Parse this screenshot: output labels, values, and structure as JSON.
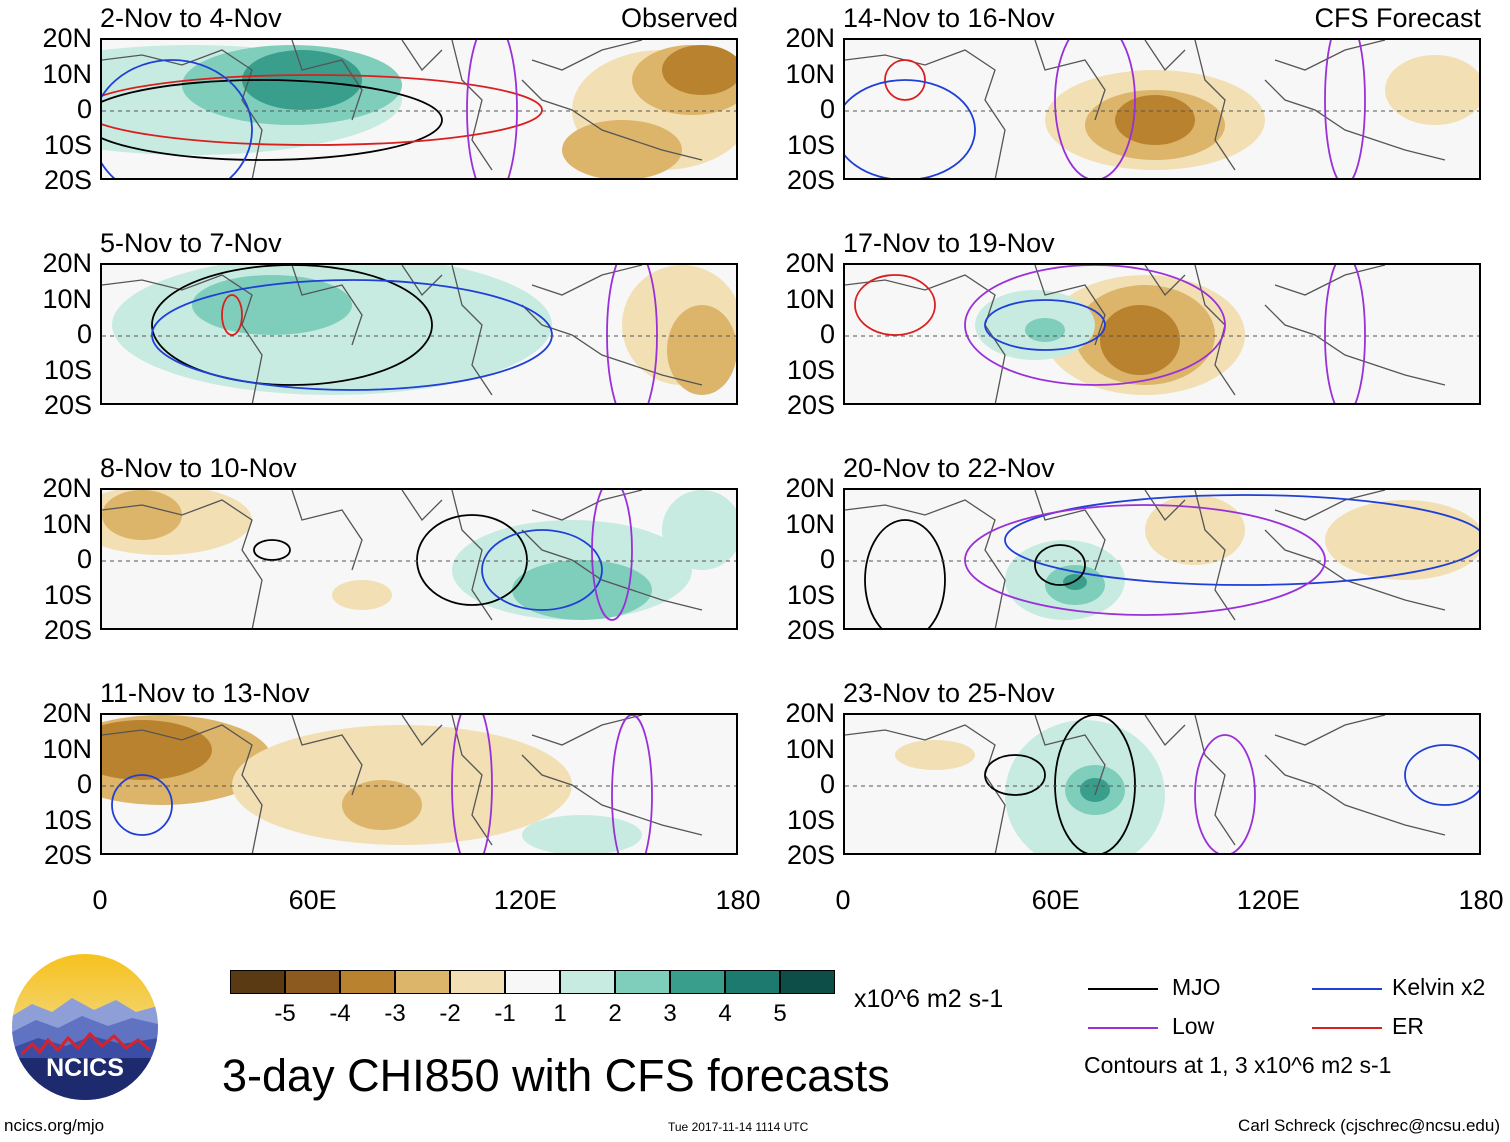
{
  "panels": [
    {
      "title": "2-Nov to 4-Nov",
      "label": "Observed"
    },
    {
      "title": "5-Nov to 7-Nov",
      "label": ""
    },
    {
      "title": "8-Nov to 10-Nov",
      "label": ""
    },
    {
      "title": "11-Nov to 13-Nov",
      "label": ""
    },
    {
      "title": "14-Nov to 16-Nov",
      "label": "CFS Forecast"
    },
    {
      "title": "17-Nov to 19-Nov",
      "label": ""
    },
    {
      "title": "20-Nov to 22-Nov",
      "label": ""
    },
    {
      "title": "23-Nov to 25-Nov",
      "label": ""
    }
  ],
  "axes": {
    "y_ticks": [
      "20N",
      "10N",
      "0",
      "10S",
      "20S"
    ],
    "x_ticks": [
      "0",
      "60E",
      "120E",
      "180"
    ]
  },
  "colorbar": {
    "ticks": [
      "-5",
      "-4",
      "-3",
      "-2",
      "-1",
      "1",
      "2",
      "3",
      "4",
      "5"
    ],
    "unit": "x10^6 m2 s-1",
    "colors": [
      "#5a3a12",
      "#8c5a1e",
      "#b9822f",
      "#dcb46a",
      "#f2dfb4",
      "#f7f7f7",
      "#c7ebe1",
      "#7fcdbb",
      "#3a9e8c",
      "#1c7a6e",
      "#0d4f48"
    ]
  },
  "legend": {
    "items": [
      {
        "label": "MJO",
        "color": "#000000"
      },
      {
        "label": "Kelvin x2",
        "color": "#1f3fd6"
      },
      {
        "label": "Low",
        "color": "#9a30d8"
      },
      {
        "label": "ER",
        "color": "#d92020"
      }
    ],
    "note": "Contours at 1, 3 x10^6 m2 s-1"
  },
  "main_title": "3-day CHI850 with CFS forecasts",
  "footer": {
    "left": "ncics.org/mjo",
    "center": "Tue 2017-11-14 1114 UTC",
    "right": "Carl Schreck (cjschrec@ncsu.edu)"
  },
  "logo": {
    "text": "NCICS"
  },
  "chart_data": {
    "type": "heatmap",
    "variable": "3-day CHI850",
    "units": "x10^6 m2 s-1",
    "x_range": [
      0,
      180
    ],
    "y_range": [
      -20,
      20
    ],
    "levels": [
      -5,
      -4,
      -3,
      -2,
      -1,
      1,
      2,
      3,
      4,
      5
    ],
    "contours": [
      1,
      3
    ]
  }
}
